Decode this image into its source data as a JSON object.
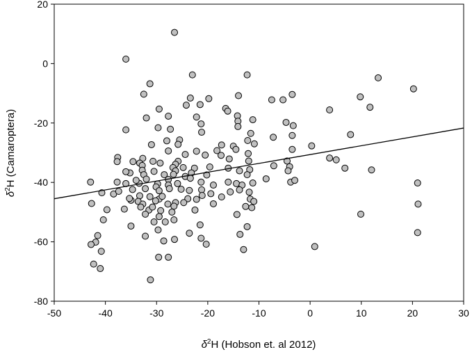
{
  "chart_data": {
    "type": "scatter",
    "xlabel_prefix": "δ",
    "xlabel_superscript": "2",
    "xlabel_rest": "H (Hobson et. al 2012)",
    "ylabel_prefix": "δ",
    "ylabel_superscript": "2",
    "ylabel_rest": "H (Camaroptera)",
    "xlim": [
      -50,
      30
    ],
    "ylim": [
      -80,
      20
    ],
    "xticks": [
      "-50",
      "-40",
      "-30",
      "-20",
      "-10",
      "0",
      "10",
      "20",
      "30"
    ],
    "yticks": [
      "-80",
      "-60",
      "-40",
      "-20",
      "0",
      "20"
    ],
    "grid": false,
    "marker_color": "#c0c0c0",
    "trendline": {
      "x": [
        -50,
        30
      ],
      "y": [
        -45.5,
        -21.7
      ]
    },
    "points": [
      {
        "x": -36.0,
        "y": 1.5
      },
      {
        "x": -26.5,
        "y": 10.5
      },
      {
        "x": -31.3,
        "y": -6.8
      },
      {
        "x": -23.0,
        "y": -3.8
      },
      {
        "x": -12.3,
        "y": -3.8
      },
      {
        "x": -32.5,
        "y": -10.3
      },
      {
        "x": -23.4,
        "y": -11.6
      },
      {
        "x": -19.8,
        "y": -11.8
      },
      {
        "x": -14.0,
        "y": -10.8
      },
      {
        "x": -7.5,
        "y": -12.2
      },
      {
        "x": -5.3,
        "y": -12.2
      },
      {
        "x": -3.5,
        "y": -10.4
      },
      {
        "x": 9.8,
        "y": -11.2
      },
      {
        "x": 13.3,
        "y": -4.8
      },
      {
        "x": 20.2,
        "y": -8.5
      },
      {
        "x": -21.5,
        "y": -13.8
      },
      {
        "x": -24.2,
        "y": -14.0
      },
      {
        "x": -29.5,
        "y": -15.3
      },
      {
        "x": -16.5,
        "y": -15.1
      },
      {
        "x": -16.1,
        "y": -16.0
      },
      {
        "x": 11.7,
        "y": -14.7
      },
      {
        "x": 3.8,
        "y": -15.6
      },
      {
        "x": -22.2,
        "y": -18.0
      },
      {
        "x": -27.7,
        "y": -17.7
      },
      {
        "x": -14.2,
        "y": -17.6
      },
      {
        "x": -14.1,
        "y": -19.4
      },
      {
        "x": -11.2,
        "y": -18.9
      },
      {
        "x": -4.7,
        "y": -19.8
      },
      {
        "x": -32.0,
        "y": -18.3
      },
      {
        "x": -21.3,
        "y": -20.3
      },
      {
        "x": -14.1,
        "y": -21.2
      },
      {
        "x": -29.7,
        "y": -21.6
      },
      {
        "x": -36.0,
        "y": -22.3
      },
      {
        "x": -27.3,
        "y": -22.1
      },
      {
        "x": -21.2,
        "y": -23.1
      },
      {
        "x": -11.6,
        "y": -23.5
      },
      {
        "x": -3.3,
        "y": -20.9
      },
      {
        "x": -7.2,
        "y": -24.8
      },
      {
        "x": -3.5,
        "y": -24.2
      },
      {
        "x": 7.9,
        "y": -23.9
      },
      {
        "x": -25.5,
        "y": -25.7
      },
      {
        "x": -28.0,
        "y": -26.0
      },
      {
        "x": -25.8,
        "y": -27.2
      },
      {
        "x": -17.3,
        "y": -27.4
      },
      {
        "x": -12.2,
        "y": -25.9
      },
      {
        "x": -10.9,
        "y": -27.0
      },
      {
        "x": -31.0,
        "y": -27.3
      },
      {
        "x": -15.0,
        "y": -27.8
      },
      {
        "x": -18.2,
        "y": -29.3
      },
      {
        "x": -17.4,
        "y": -30.9
      },
      {
        "x": -14.5,
        "y": -28.9
      },
      {
        "x": -27.7,
        "y": -29.4
      },
      {
        "x": -24.4,
        "y": -30.6
      },
      {
        "x": -22.2,
        "y": -29.5
      },
      {
        "x": -20.5,
        "y": -30.8
      },
      {
        "x": -12.1,
        "y": -30.3
      },
      {
        "x": -3.5,
        "y": -28.9
      },
      {
        "x": 0.3,
        "y": -27.7
      },
      {
        "x": -15.8,
        "y": -32.1
      },
      {
        "x": -12.0,
        "y": -32.8
      },
      {
        "x": -25.8,
        "y": -32.9
      },
      {
        "x": -32.7,
        "y": -31.9
      },
      {
        "x": -29.3,
        "y": -33.5
      },
      {
        "x": -26.3,
        "y": -33.9
      },
      {
        "x": -30.7,
        "y": -32.9
      },
      {
        "x": -33.3,
        "y": -33.5
      },
      {
        "x": -37.6,
        "y": -31.6
      },
      {
        "x": -37.7,
        "y": -33.0
      },
      {
        "x": -34.6,
        "y": -33.0
      },
      {
        "x": -32.8,
        "y": -34.3
      },
      {
        "x": -26.8,
        "y": -35.0
      },
      {
        "x": -24.8,
        "y": -35.0
      },
      {
        "x": -22.6,
        "y": -35.2
      },
      {
        "x": -19.6,
        "y": -34.8
      },
      {
        "x": -26.3,
        "y": -36.1
      },
      {
        "x": -23.2,
        "y": -36.8
      },
      {
        "x": -30.5,
        "y": -36.3
      },
      {
        "x": -32.8,
        "y": -35.9
      },
      {
        "x": -35.2,
        "y": -36.8
      },
      {
        "x": -36.0,
        "y": -36.4
      },
      {
        "x": -32.5,
        "y": -37.4
      },
      {
        "x": -28.5,
        "y": -37.4
      },
      {
        "x": -26.7,
        "y": -37.3
      },
      {
        "x": -24.4,
        "y": -38.0
      },
      {
        "x": -20.2,
        "y": -37.5
      },
      {
        "x": -16.0,
        "y": -35.2
      },
      {
        "x": -13.8,
        "y": -36.1
      },
      {
        "x": -11.8,
        "y": -35.7
      },
      {
        "x": -7.1,
        "y": -34.4
      },
      {
        "x": -4.5,
        "y": -32.8
      },
      {
        "x": -4.0,
        "y": -34.7
      },
      {
        "x": 3.8,
        "y": -31.8
      },
      {
        "x": 5.1,
        "y": -32.4
      },
      {
        "x": 6.8,
        "y": -35.2
      },
      {
        "x": 12.0,
        "y": -35.8
      },
      {
        "x": -4.3,
        "y": -36.1
      },
      {
        "x": -8.6,
        "y": -38.8
      },
      {
        "x": -12.3,
        "y": -37.4
      },
      {
        "x": -23.4,
        "y": -38.6
      },
      {
        "x": -27.7,
        "y": -39.0
      },
      {
        "x": -32.0,
        "y": -38.9
      },
      {
        "x": -33.4,
        "y": -40.3
      },
      {
        "x": -34.0,
        "y": -39.3
      },
      {
        "x": -36.0,
        "y": -40.4
      },
      {
        "x": -37.7,
        "y": -39.9
      },
      {
        "x": -42.9,
        "y": -39.9
      },
      {
        "x": -29.8,
        "y": -40.5
      },
      {
        "x": -27.7,
        "y": -40.9
      },
      {
        "x": -25.9,
        "y": -40.4
      },
      {
        "x": -21.3,
        "y": -39.9
      },
      {
        "x": -18.9,
        "y": -40.9
      },
      {
        "x": -16.0,
        "y": -39.9
      },
      {
        "x": -14.4,
        "y": -40.4
      },
      {
        "x": -13.3,
        "y": -40.9
      },
      {
        "x": -11.2,
        "y": -40.2
      },
      {
        "x": -3.8,
        "y": -39.9
      },
      {
        "x": -3.0,
        "y": -39.3
      },
      {
        "x": 21.0,
        "y": -40.2
      },
      {
        "x": -40.7,
        "y": -43.5
      },
      {
        "x": -38.4,
        "y": -43.9
      },
      {
        "x": -37.4,
        "y": -43.0
      },
      {
        "x": -34.7,
        "y": -42.4
      },
      {
        "x": -32.2,
        "y": -42.1
      },
      {
        "x": -30.1,
        "y": -41.5
      },
      {
        "x": -29.5,
        "y": -42.8
      },
      {
        "x": -27.5,
        "y": -42.1
      },
      {
        "x": -25.2,
        "y": -42.3
      },
      {
        "x": -23.6,
        "y": -42.7
      },
      {
        "x": -21.2,
        "y": -42.5
      },
      {
        "x": -19.4,
        "y": -43.8
      },
      {
        "x": -15.6,
        "y": -43.2
      },
      {
        "x": -13.8,
        "y": -42.5
      },
      {
        "x": -11.9,
        "y": -43.3
      },
      {
        "x": -33.3,
        "y": -44.5
      },
      {
        "x": -31.3,
        "y": -44.8
      },
      {
        "x": -29.5,
        "y": -45.6
      },
      {
        "x": -28.9,
        "y": -44.7
      },
      {
        "x": -23.9,
        "y": -45.5
      },
      {
        "x": -22.2,
        "y": -45.7
      },
      {
        "x": -21.1,
        "y": -44.4
      },
      {
        "x": -17.3,
        "y": -44.9
      },
      {
        "x": -11.7,
        "y": -45.6
      },
      {
        "x": -35.0,
        "y": -46.0
      },
      {
        "x": -33.6,
        "y": -46.4
      },
      {
        "x": -32.7,
        "y": -47.3
      },
      {
        "x": -30.2,
        "y": -46.2
      },
      {
        "x": -26.3,
        "y": -46.8
      },
      {
        "x": -24.7,
        "y": -46.8
      },
      {
        "x": -18.9,
        "y": -47.2
      },
      {
        "x": -11.0,
        "y": -46.4
      },
      {
        "x": -42.7,
        "y": -47.1
      },
      {
        "x": -35.3,
        "y": -45.4
      },
      {
        "x": -36.3,
        "y": -49.0
      },
      {
        "x": -33.1,
        "y": -48.3
      },
      {
        "x": -31.5,
        "y": -49.3
      },
      {
        "x": -30.8,
        "y": -48.3
      },
      {
        "x": -27.8,
        "y": -47.3
      },
      {
        "x": -26.6,
        "y": -48.0
      },
      {
        "x": -29.2,
        "y": -49.5
      },
      {
        "x": -32.2,
        "y": -50.7
      },
      {
        "x": -27.0,
        "y": -50.0
      },
      {
        "x": -22.5,
        "y": -49.3
      },
      {
        "x": -39.7,
        "y": -49.2
      },
      {
        "x": -12.6,
        "y": -48.1
      },
      {
        "x": -11.4,
        "y": -48.5
      },
      {
        "x": -14.3,
        "y": -50.8
      },
      {
        "x": -29.5,
        "y": -51.5
      },
      {
        "x": -28.3,
        "y": -53.3
      },
      {
        "x": -30.5,
        "y": -53.3
      },
      {
        "x": -40.4,
        "y": -52.6
      },
      {
        "x": -35.0,
        "y": -54.7
      },
      {
        "x": -26.6,
        "y": -52.6
      },
      {
        "x": -21.5,
        "y": -54.3
      },
      {
        "x": -12.3,
        "y": -54.9
      },
      {
        "x": -13.7,
        "y": -57.5
      },
      {
        "x": 9.9,
        "y": -50.7
      },
      {
        "x": 21.1,
        "y": -47.3
      },
      {
        "x": 21.0,
        "y": -56.9
      },
      {
        "x": -29.7,
        "y": -56.0
      },
      {
        "x": -32.2,
        "y": -58.1
      },
      {
        "x": -23.6,
        "y": -57.1
      },
      {
        "x": -41.5,
        "y": -57.9
      },
      {
        "x": -26.5,
        "y": -59.2
      },
      {
        "x": -21.3,
        "y": -58.8
      },
      {
        "x": -41.9,
        "y": -60.1
      },
      {
        "x": -28.6,
        "y": -59.7
      },
      {
        "x": -20.3,
        "y": -60.8
      },
      {
        "x": -42.8,
        "y": -60.9
      },
      {
        "x": -13.0,
        "y": -62.6
      },
      {
        "x": 0.9,
        "y": -61.6
      },
      {
        "x": -40.8,
        "y": -63.2
      },
      {
        "x": -29.6,
        "y": -65.2
      },
      {
        "x": -27.7,
        "y": -65.2
      },
      {
        "x": -42.3,
        "y": -67.5
      },
      {
        "x": -41.0,
        "y": -69.0
      },
      {
        "x": -31.2,
        "y": -72.8
      }
    ]
  }
}
